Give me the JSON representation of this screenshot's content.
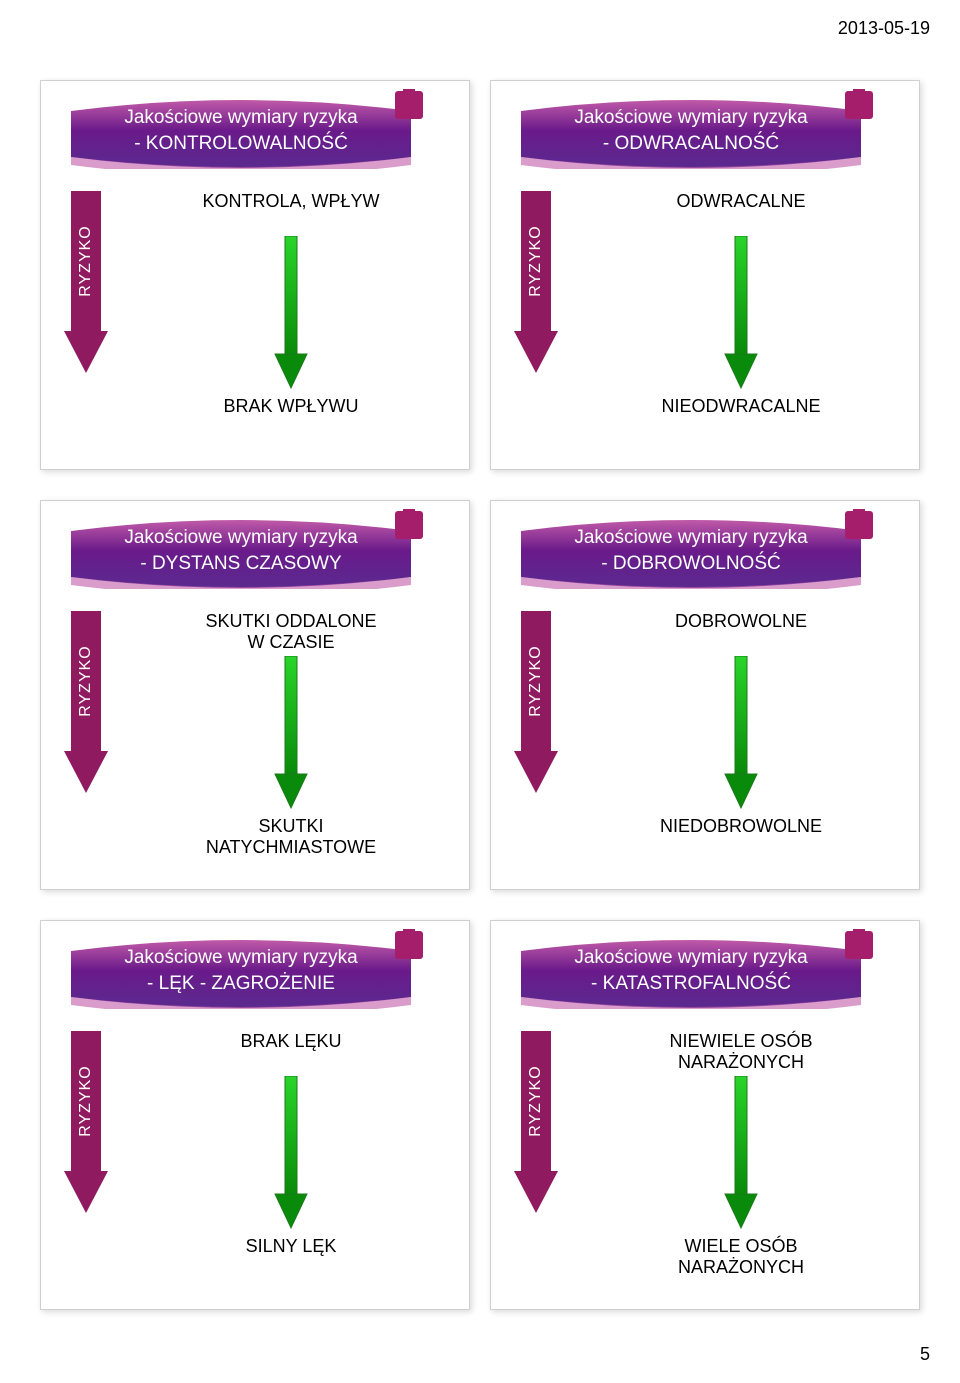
{
  "page": {
    "date": "2013-05-19",
    "number": "5"
  },
  "common": {
    "banner_title": "Jakościowe wymiary ryzyka",
    "ryzyko_label": "RYZYKO"
  },
  "colors": {
    "banner_fill": "#6a1a8a",
    "banner_swoosh_top": "#c05aa8",
    "banner_swoosh_bot": "#5a2a8f",
    "accent_fill": "#a41e6b",
    "ryzyko_fill": "#8f1a5f",
    "arrow_start": "#2ad52a",
    "arrow_end": "#0a8a0a",
    "arrow_stroke": "#1a7a1a",
    "text_black": "#000000",
    "text_white": "#ffffff",
    "slide_border": "#d0d0d0",
    "page_bg": "#ffffff"
  },
  "typography": {
    "banner_fontsize": 19,
    "label_fontsize": 18,
    "ryzyko_fontsize": 16,
    "date_fontsize": 18
  },
  "slides": [
    {
      "subtitle": "- KONTROLOWALNOŚĆ",
      "top_label": "KONTROLA, WPŁYW",
      "bottom_label": "BRAK WPŁYWU"
    },
    {
      "subtitle": "- ODWRACALNOŚĆ",
      "top_label": "ODWRACALNE",
      "bottom_label": "NIEODWRACALNE"
    },
    {
      "subtitle": "- DYSTANS CZASOWY",
      "top_label": "SKUTKI ODDALONE\nW CZASIE",
      "bottom_label": "SKUTKI\nNATYCHMIASTOWE"
    },
    {
      "subtitle": "- DOBROWOLNOŚĆ",
      "top_label": "DOBROWOLNE",
      "bottom_label": "NIEDOBROWOLNE"
    },
    {
      "subtitle": "- LĘK - ZAGROŻENIE",
      "top_label": "BRAK LĘKU",
      "bottom_label": "SILNY LĘK"
    },
    {
      "subtitle": "- KATASTROFALNOŚĆ",
      "top_label": "NIEWIELE OSÓB\nNARAŻONYCH",
      "bottom_label": "WIELE OSÓB\nNARAŻONYCH"
    }
  ]
}
